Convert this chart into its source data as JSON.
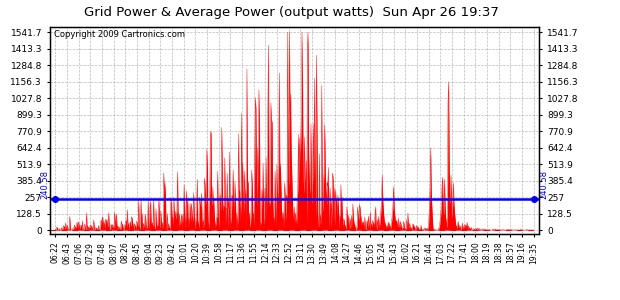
{
  "title": "Grid Power & Average Power (output watts)  Sun Apr 26 19:37",
  "copyright": "Copyright 2009 Cartronics.com",
  "avg_value": 240.58,
  "bg_color": "#ffffff",
  "plot_bg_color": "#ffffff",
  "grid_color": "#aaaaaa",
  "fill_color": "#ff0000",
  "avg_line_color": "#0000ff",
  "dashed_line_color": "#ff0000",
  "ymin": 0.0,
  "ymax": 1541.7,
  "yticks": [
    0.0,
    128.5,
    257.0,
    385.4,
    513.9,
    642.4,
    770.9,
    899.3,
    1027.8,
    1156.3,
    1284.8,
    1413.3,
    1541.7
  ],
  "xtick_labels": [
    "06:22",
    "06:43",
    "07:06",
    "07:29",
    "07:48",
    "08:07",
    "08:26",
    "08:45",
    "09:04",
    "09:23",
    "09:42",
    "10:01",
    "10:20",
    "10:39",
    "10:58",
    "11:17",
    "11:36",
    "11:55",
    "12:14",
    "12:33",
    "12:52",
    "13:11",
    "13:30",
    "13:49",
    "14:08",
    "14:27",
    "14:46",
    "15:05",
    "15:24",
    "15:43",
    "16:02",
    "16:21",
    "16:44",
    "17:03",
    "17:22",
    "17:41",
    "18:00",
    "18:19",
    "18:38",
    "18:57",
    "19:16",
    "19:35"
  ],
  "seed": 123
}
